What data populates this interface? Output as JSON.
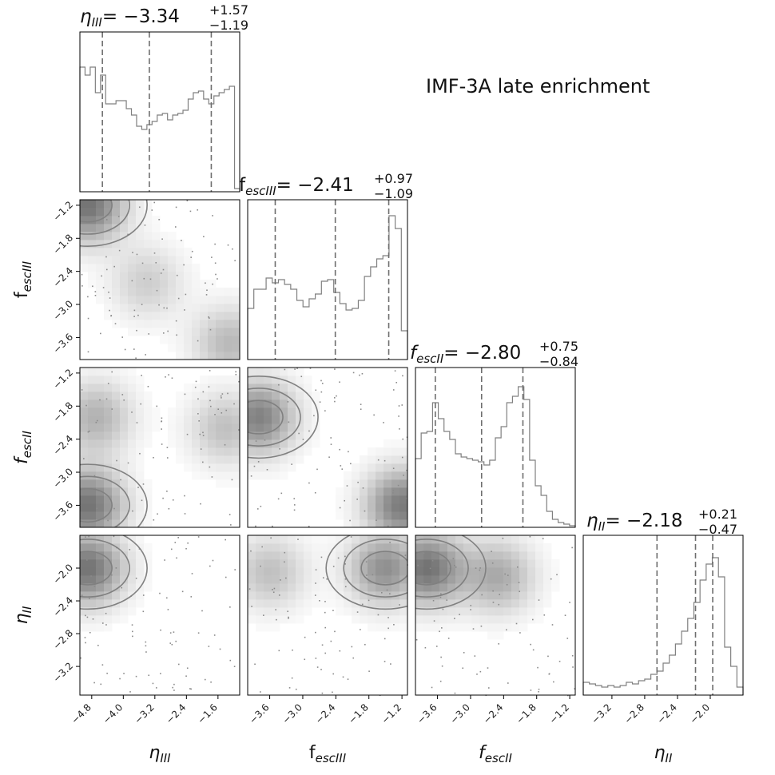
{
  "figure_title": "IMF-3A late enrichment",
  "chart_data": {
    "type": "corner",
    "title": "IMF-3A late enrichment",
    "parameters": [
      {
        "key": "eta_III",
        "axis_label": "ηIII",
        "label_main": "η",
        "label_sub": "III",
        "italic": true,
        "range": [
          -5.1,
          -1.05
        ],
        "ticks": [
          -4.8,
          -4.0,
          -3.2,
          -2.4,
          -1.6
        ],
        "tick_labels": [
          "−4.8",
          "−4.0",
          "−3.2",
          "−2.4",
          "−1.6"
        ],
        "median": -3.34,
        "plus": 1.57,
        "minus": 1.19,
        "title": "ηIII = −3.34 +1.57 −1.19",
        "title_main": "= −3.34",
        "title_plus": "+1.57",
        "title_minus": "−1.19",
        "quantiles": [
          -4.53,
          -3.34,
          -1.77
        ],
        "hist_bins": [
          0.78,
          0.73,
          0.78,
          0.62,
          0.73,
          0.55,
          0.55,
          0.57,
          0.57,
          0.52,
          0.48,
          0.41,
          0.39,
          0.42,
          0.44,
          0.48,
          0.49,
          0.45,
          0.48,
          0.49,
          0.51,
          0.58,
          0.62,
          0.63,
          0.58,
          0.55,
          0.6,
          0.62,
          0.64,
          0.66,
          0.02
        ]
      },
      {
        "key": "fesc_III",
        "axis_label": "fescIII",
        "label_main": "f",
        "label_sub": "escIII",
        "italic": false,
        "range": [
          -4.0,
          -1.1
        ],
        "ticks": [
          -3.6,
          -3.0,
          -2.4,
          -1.8,
          -1.2
        ],
        "tick_labels": [
          "−3.6",
          "−3.0",
          "−2.4",
          "−1.8",
          "−1.2"
        ],
        "median": -2.41,
        "plus": 0.97,
        "minus": 1.09,
        "title": "fescIII = −2.41 +0.97 −1.09",
        "title_main": "= −2.41",
        "title_plus": "+0.97",
        "title_minus": "−1.09",
        "quantiles": [
          -3.5,
          -2.41,
          -1.44
        ],
        "hist_bins": [
          0.32,
          0.44,
          0.44,
          0.51,
          0.48,
          0.5,
          0.47,
          0.44,
          0.37,
          0.33,
          0.38,
          0.41,
          0.49,
          0.5,
          0.42,
          0.35,
          0.31,
          0.32,
          0.37,
          0.52,
          0.58,
          0.63,
          0.65,
          0.9,
          0.82,
          0.18
        ]
      },
      {
        "key": "fesc_II",
        "axis_label": "fescII",
        "label_main": "f",
        "label_sub": "escII",
        "italic": true,
        "range": [
          -4.0,
          -1.1
        ],
        "ticks": [
          -3.6,
          -3.0,
          -2.4,
          -1.8,
          -1.2
        ],
        "tick_labels": [
          "−3.6",
          "−3.0",
          "−2.4",
          "−1.8",
          "−1.2"
        ],
        "median": -2.8,
        "plus": 0.75,
        "minus": 0.84,
        "title": "fescII = −2.80 +0.75 −0.84",
        "title_main": "= −2.80",
        "title_plus": "+0.75",
        "title_minus": "−0.84",
        "quantiles": [
          -3.64,
          -2.8,
          -2.05
        ],
        "hist_bins": [
          0.43,
          0.59,
          0.6,
          0.78,
          0.68,
          0.6,
          0.55,
          0.46,
          0.44,
          0.43,
          0.42,
          0.41,
          0.39,
          0.42,
          0.56,
          0.63,
          0.78,
          0.82,
          0.88,
          0.8,
          0.42,
          0.26,
          0.2,
          0.1,
          0.05,
          0.03,
          0.02,
          0.01
        ]
      },
      {
        "key": "eta_II",
        "axis_label": "ηII",
        "label_main": "η",
        "label_sub": "II",
        "italic": true,
        "range": [
          -3.55,
          -1.6
        ],
        "ticks": [
          -3.2,
          -2.8,
          -2.4,
          -2.0
        ],
        "tick_labels": [
          "−3.2",
          "−2.8",
          "−2.4",
          "−2.0"
        ],
        "median": -2.18,
        "plus": 0.21,
        "minus": 0.47,
        "title": "ηII = −2.18 +0.21 −0.47",
        "title_main": "= −2.18",
        "title_plus": "+0.21",
        "title_minus": "−0.47",
        "quantiles": [
          -2.65,
          -2.18,
          -1.97
        ],
        "hist_bins": [
          0.08,
          0.07,
          0.06,
          0.05,
          0.06,
          0.05,
          0.06,
          0.08,
          0.07,
          0.09,
          0.1,
          0.13,
          0.15,
          0.2,
          0.25,
          0.32,
          0.4,
          0.48,
          0.58,
          0.72,
          0.82,
          0.86,
          0.74,
          0.3,
          0.18,
          0.05
        ]
      }
    ],
    "pair_density_peaks": {
      "fescIII_vs_etaIII": [
        [
          -4.9,
          -1.2,
          1.0
        ],
        [
          -3.4,
          -2.6,
          0.35
        ],
        [
          -1.3,
          -3.7,
          0.5
        ]
      ],
      "fescII_vs_etaIII": [
        [
          -4.9,
          -3.6,
          1.0
        ],
        [
          -4.7,
          -2.0,
          0.55
        ],
        [
          -1.4,
          -2.2,
          0.45
        ]
      ],
      "fescII_vs_fescIII": [
        [
          -3.8,
          -2.0,
          0.9
        ],
        [
          -1.2,
          -3.6,
          0.95
        ]
      ],
      "etaII_vs_etaIII": [
        [
          -4.9,
          -2.0,
          1.0
        ]
      ],
      "etaII_vs_fescIII": [
        [
          -1.5,
          -2.0,
          0.8
        ],
        [
          -3.6,
          -2.05,
          0.45
        ]
      ],
      "etaII_vs_fescII": [
        [
          -3.8,
          -2.0,
          1.0
        ],
        [
          -2.5,
          -2.1,
          0.6
        ]
      ]
    }
  }
}
